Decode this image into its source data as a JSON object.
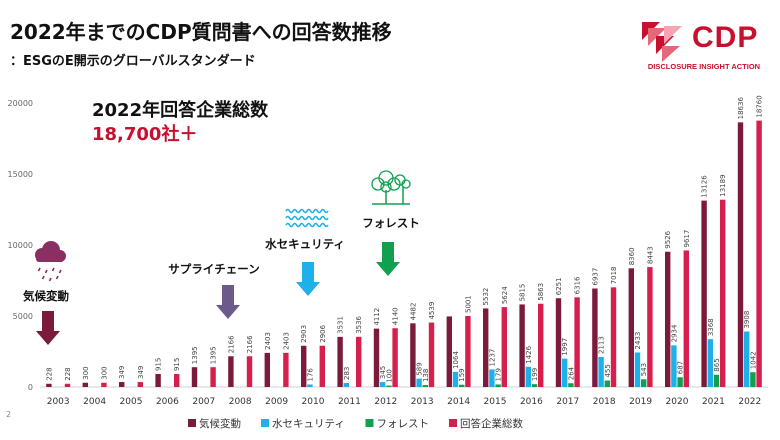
{
  "header": {
    "title": "2022年までのCDP質問書への回答数推移",
    "subtitle": "：ESGのE開示のグローバルスタンダード"
  },
  "logo": {
    "wordmark": "CDP",
    "tagline": "DISCLOSURE INSIGHT ACTION"
  },
  "headline": {
    "label": "2022年回答企業総数",
    "value": "18,700社＋"
  },
  "page_number": "2",
  "colors": {
    "climate": "#7b1a3d",
    "water": "#1eb0e8",
    "forest": "#10a050",
    "total": "#d61f4c",
    "arrow_climate": "#7b1a3d",
    "arrow_supply": "#6d5a8c",
    "arrow_water": "#1eb0e8",
    "arrow_forest": "#10a050"
  },
  "chart_data": {
    "type": "bar",
    "categories": [
      "2003",
      "2004",
      "2005",
      "2006",
      "2007",
      "2008",
      "2009",
      "2010",
      "2011",
      "2012",
      "2013",
      "2014",
      "2015",
      "2016",
      "2017",
      "2018",
      "2019",
      "2020",
      "2021",
      "2022"
    ],
    "ylim": [
      0,
      20000
    ],
    "yticks": [
      0,
      5000,
      10000,
      15000,
      20000
    ],
    "grid": false,
    "legend_position": "bottom",
    "series": [
      {
        "key": "climate",
        "name": "気候変動",
        "values": [
          228,
          300,
          349,
          915,
          1395,
          2166,
          2403,
          2903,
          3531,
          4112,
          4482,
          4969,
          5532,
          5815,
          6251,
          6937,
          8360,
          9526,
          13126,
          18636
        ],
        "labels": [
          "228",
          "300",
          "349",
          "915",
          "1395",
          "2166",
          "2403",
          "2903",
          "3531",
          "4112",
          "4482",
          "",
          "5532",
          "5815",
          "6251",
          "6937",
          "8360",
          "9526",
          "13126",
          "18636"
        ]
      },
      {
        "key": "water",
        "name": "水セキュリティ",
        "values": [
          null,
          null,
          null,
          null,
          null,
          null,
          null,
          176,
          283,
          345,
          589,
          1064,
          1237,
          1426,
          1997,
          2113,
          2433,
          2934,
          3368,
          3908
        ],
        "labels": [
          "",
          "",
          "",
          "",
          "",
          "",
          "",
          "176",
          "283",
          "345",
          "589",
          "1064",
          "1237",
          "1426",
          "1997",
          "2113",
          "2433",
          "2934",
          "3368",
          "3908"
        ]
      },
      {
        "key": "forest",
        "name": "フォレスト",
        "values": [
          null,
          null,
          null,
          null,
          null,
          null,
          null,
          null,
          null,
          100,
          138,
          159,
          179,
          199,
          264,
          455,
          543,
          687,
          865,
          1042
        ],
        "labels": [
          "",
          "",
          "",
          "",
          "",
          "",
          "",
          "",
          "",
          "100",
          "138",
          "159",
          "179",
          "199",
          "264",
          "455",
          "543",
          "687",
          "865",
          "1042"
        ]
      },
      {
        "key": "total",
        "name": "回答企業総数",
        "values": [
          228,
          300,
          349,
          915,
          1395,
          2166,
          2403,
          2906,
          3536,
          4140,
          4539,
          5001,
          5624,
          5863,
          6316,
          7018,
          8443,
          9617,
          13189,
          18760
        ],
        "labels": [
          "228",
          "300",
          "349",
          "915",
          "1395",
          "2166",
          "2403",
          "2906",
          "3536",
          "4140",
          "4539",
          "5001",
          "5624",
          "5863",
          "6316",
          "7018",
          "8443",
          "9617",
          "13189",
          "18760"
        ]
      }
    ],
    "annotations": [
      {
        "key": "climate",
        "text": "気候変動",
        "year": "2003",
        "icon": "rain-cloud-icon"
      },
      {
        "key": "supply",
        "text": "サプライチェーン",
        "year": "2008",
        "icon": null
      },
      {
        "key": "water",
        "text": "水セキュリティ",
        "year": "2010",
        "icon": "water-waves-icon"
      },
      {
        "key": "forest",
        "text": "フォレスト",
        "year": "2012",
        "icon": "forest-trees-icon"
      }
    ]
  }
}
